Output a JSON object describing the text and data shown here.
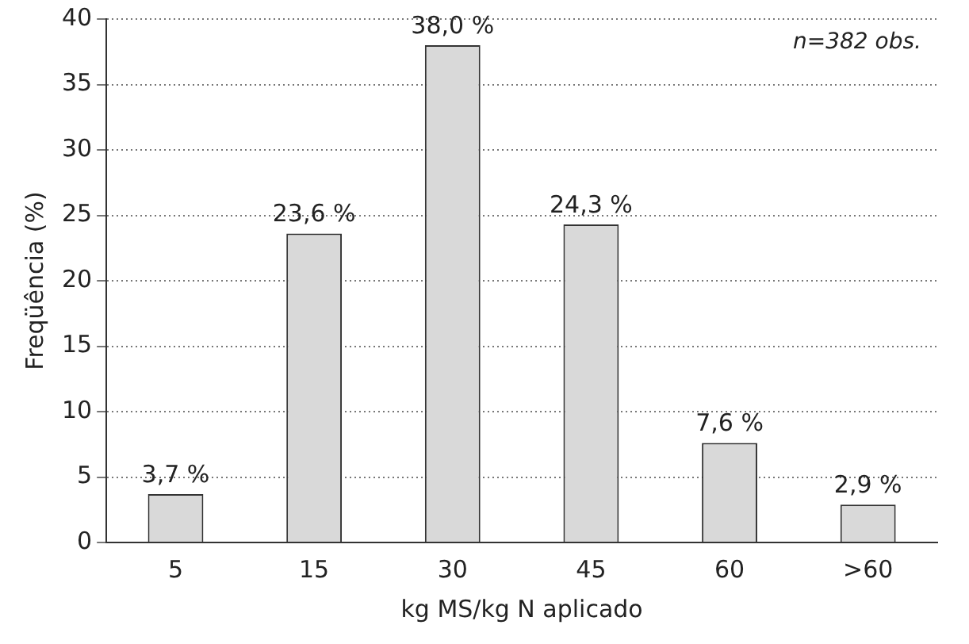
{
  "chart_data": {
    "type": "bar",
    "xlabel": "kg MS/kg N aplicado",
    "ylabel": "Freqüência (%)",
    "categories": [
      "5",
      "15",
      "30",
      "45",
      "60",
      ">60"
    ],
    "values": [
      3.7,
      23.6,
      38.0,
      24.3,
      7.6,
      2.9
    ],
    "value_labels": [
      "3,7 %",
      "23,6 %",
      "38,0 %",
      "24,3 %",
      "7,6 %",
      "2,9 %"
    ],
    "color": "#d9d9d9",
    "ylim": [
      0,
      40
    ],
    "yticks": [
      0,
      5,
      10,
      15,
      20,
      25,
      30,
      35,
      40
    ],
    "grid": "y",
    "annotations": [
      "n=382 obs."
    ]
  }
}
